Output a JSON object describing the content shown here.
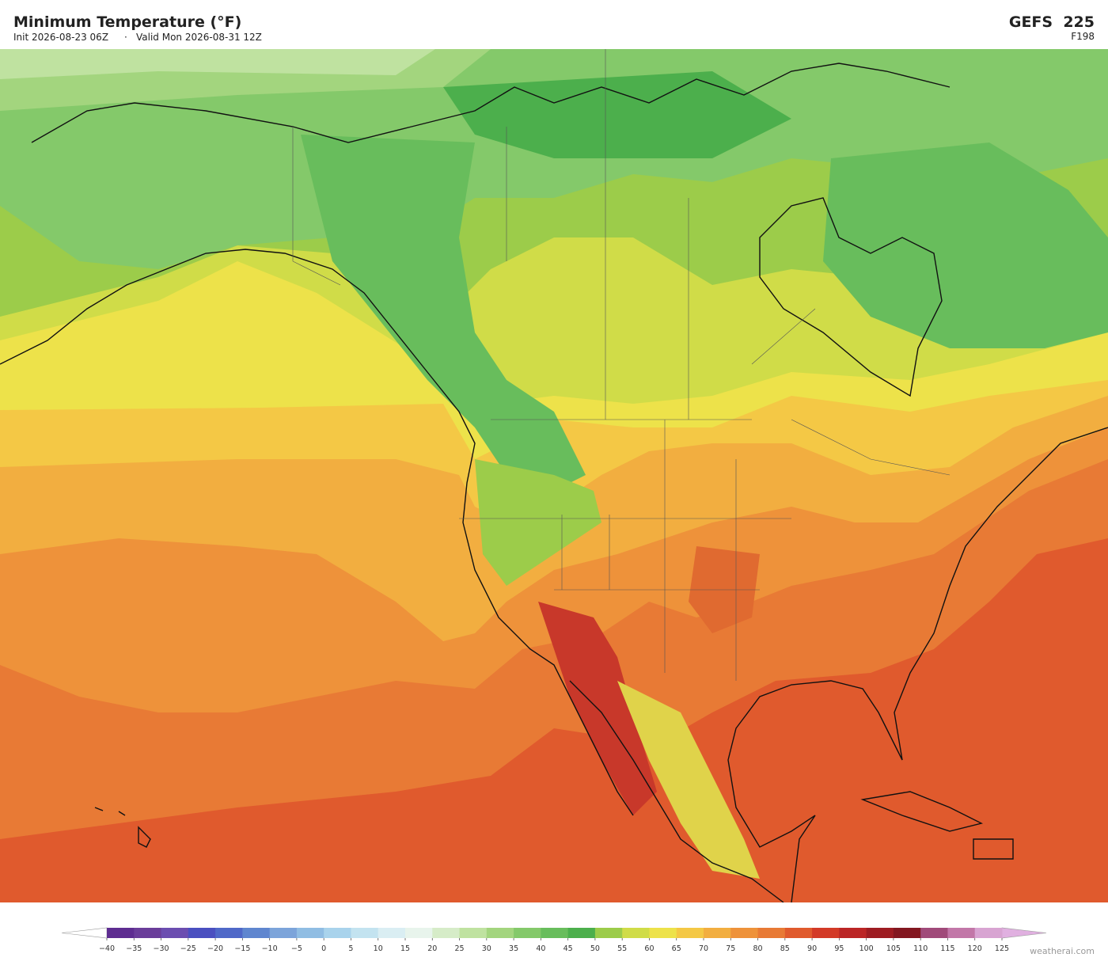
{
  "header": {
    "title": "Minimum Temperature  (°F)",
    "init": "Init 2026-08-23 06Z",
    "separator": "·",
    "valid": "Valid Mon 2026-08-31 12Z",
    "model": "GEFS  225",
    "forecast_hour": "F198"
  },
  "colorbar": {
    "ticks": [
      {
        "value": -40,
        "label": "−40"
      },
      {
        "value": -35,
        "label": "−35"
      },
      {
        "value": -30,
        "label": "−30"
      },
      {
        "value": -25,
        "label": "−25"
      },
      {
        "value": -20,
        "label": "−20"
      },
      {
        "value": -15,
        "label": "−15"
      },
      {
        "value": -10,
        "label": "−10"
      },
      {
        "value": -5,
        "label": "−5"
      },
      0,
      5,
      10,
      15,
      20,
      25,
      30,
      35,
      40,
      45,
      50,
      55,
      60,
      65,
      70,
      75,
      80,
      85,
      90,
      95,
      100,
      105,
      110,
      115,
      120,
      125
    ],
    "colors": [
      "#5e2d91",
      "#6a3d9a",
      "#6b4db0",
      "#4a4fc0",
      "#4f68c8",
      "#5f86cf",
      "#7ca4da",
      "#90bde3",
      "#a9d3ec",
      "#c3e3f0",
      "#daeef3",
      "#e8f4ec",
      "#d6ecc8",
      "#bfe2a0",
      "#a3d57e",
      "#84c96a",
      "#68bd5c",
      "#4caf4c",
      "#9ccc4a",
      "#d0dc48",
      "#ede24a",
      "#f4c845",
      "#f2ae40",
      "#ee923a",
      "#e87a35",
      "#e05a2d",
      "#d33a27",
      "#bb2525",
      "#9e1c22",
      "#831720",
      "#a04a7a",
      "#c277a8",
      "#d8a4d2"
    ],
    "under_color": "#ffffff",
    "over_color": "#e0b0e0"
  },
  "watermark": "weatherai.com"
}
